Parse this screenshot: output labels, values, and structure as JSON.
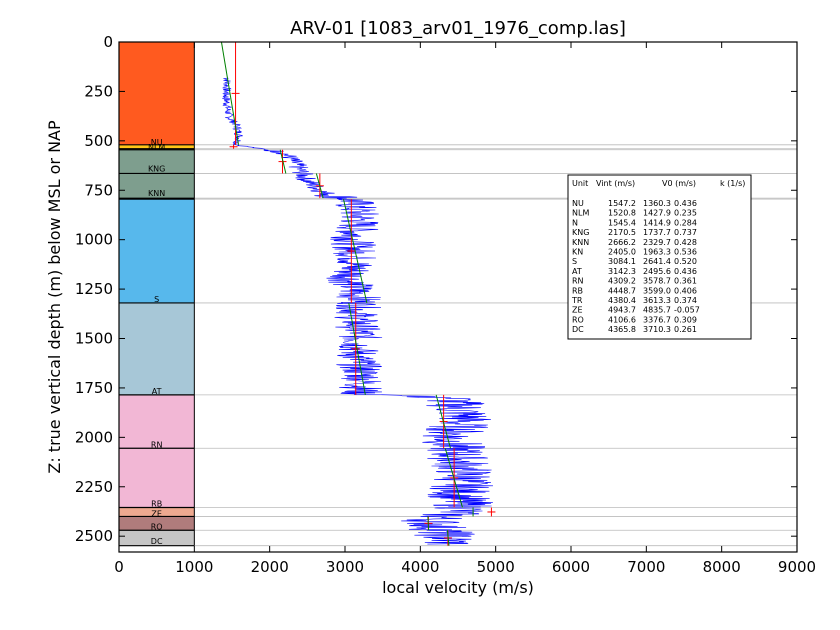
{
  "chart_data": {
    "type": "line",
    "title": "ARV-01 [1083_arv01_1976_comp.las]",
    "xlabel": "local velocity (m/s)",
    "ylabel": "Z: true vertical depth (m) below MSL or NAP",
    "xlim": [
      0,
      9000
    ],
    "ylim": [
      2580,
      0
    ],
    "x_ticks": [
      "0",
      "1000",
      "2000",
      "3000",
      "4000",
      "5000",
      "6000",
      "7000",
      "8000",
      "9000"
    ],
    "y_ticks": [
      "0",
      "250",
      "500",
      "750",
      "1000",
      "1250",
      "1500",
      "1750",
      "2000",
      "2250",
      "2500"
    ],
    "grid": "horizontal lines at unit boundaries",
    "colors": {
      "log": "#0000ff",
      "interval_velocity": "#ff0000",
      "fitted_trend": "#008000",
      "boundary_line": "#bbbbbb"
    },
    "lithology_column": {
      "x_range": [
        0,
        1000
      ],
      "units": [
        {
          "label": "NU",
          "top": 0,
          "base": 520,
          "color": "#ff5a1f"
        },
        {
          "label": "NLM",
          "top": 520,
          "base": 540,
          "color": "#ffc61a"
        },
        {
          "label": "N",
          "top": 540,
          "base": 545,
          "color": "#ffd54a"
        },
        {
          "label": "KNG",
          "top": 545,
          "base": 665,
          "color": "#7e9e8e"
        },
        {
          "label": "KNN",
          "top": 665,
          "base": 790,
          "color": "#7e9e8e"
        },
        {
          "label": "KN",
          "top": 790,
          "base": 795,
          "color": "#7e9e8e"
        },
        {
          "label": "S",
          "top": 795,
          "base": 1320,
          "color": "#57b8ec"
        },
        {
          "label": "AT",
          "top": 1320,
          "base": 1785,
          "color": "#a7c7d7"
        },
        {
          "label": "RN",
          "top": 1785,
          "base": 2055,
          "color": "#f2b7d5"
        },
        {
          "label": "RB",
          "top": 2055,
          "base": 2355,
          "color": "#f2b7d5"
        },
        {
          "label": "ZE",
          "top": 2355,
          "base": 2400,
          "color": "#eea990"
        },
        {
          "label": "RO",
          "top": 2400,
          "base": 2470,
          "color": "#b07c7c"
        },
        {
          "label": "DC",
          "top": 2470,
          "base": 2548,
          "color": "#c6c6c6"
        }
      ],
      "shown_labels": [
        {
          "label": "NU",
          "depth": 505
        },
        {
          "label": "NLM",
          "depth": 530
        },
        {
          "label": "KNG",
          "depth": 640
        },
        {
          "label": "KNN",
          "depth": 765
        },
        {
          "label": "S",
          "depth": 1300
        },
        {
          "label": "AT",
          "depth": 1765
        },
        {
          "label": "RN",
          "depth": 2035
        },
        {
          "label": "RB",
          "depth": 2335
        },
        {
          "label": "ZE",
          "depth": 2385
        },
        {
          "label": "RO",
          "depth": 2450
        },
        {
          "label": "DC",
          "depth": 2525
        }
      ]
    },
    "series": [
      {
        "kind": "interval_velocity",
        "segments": [
          {
            "unit": "NU",
            "x": 1547.2,
            "top": 0,
            "base": 520
          },
          {
            "unit": "NLM",
            "x": 1520.8,
            "top": 520,
            "base": 540
          },
          {
            "unit": "KNG",
            "x": 2170.5,
            "top": 545,
            "base": 665
          },
          {
            "unit": "KNN",
            "x": 2666.2,
            "top": 665,
            "base": 790
          },
          {
            "unit": "S",
            "x": 3084.1,
            "top": 795,
            "base": 1320
          },
          {
            "unit": "AT",
            "x": 3142.3,
            "top": 1320,
            "base": 1785
          },
          {
            "unit": "RN",
            "x": 4309.2,
            "top": 1785,
            "base": 2055
          },
          {
            "unit": "RB",
            "x": 4448.7,
            "top": 2055,
            "base": 2355
          },
          {
            "unit": "ZE",
            "x": 4943.7,
            "top": 2355,
            "base": 2400
          },
          {
            "unit": "RO",
            "x": 4106.6,
            "top": 2400,
            "base": 2470
          },
          {
            "unit": "DC",
            "x": 4365.8,
            "top": 2470,
            "base": 2548
          }
        ]
      },
      {
        "kind": "fitted_trend",
        "segments": [
          {
            "unit": "NU",
            "from": [
              1360,
              0
            ],
            "to": [
              1587,
              520
            ]
          },
          {
            "unit": "KNG",
            "from": [
              2140,
              545
            ],
            "to": [
              2215,
              665
            ]
          },
          {
            "unit": "KNN",
            "from": [
              2620,
              665
            ],
            "to": [
              2710,
              790
            ]
          },
          {
            "unit": "S",
            "from": [
              2980,
              795
            ],
            "to": [
              3290,
              1320
            ]
          },
          {
            "unit": "AT",
            "from": [
              3050,
              1320
            ],
            "to": [
              3270,
              1785
            ]
          },
          {
            "unit": "RN",
            "from": [
              4210,
              1785
            ],
            "to": [
              4400,
              2055
            ]
          },
          {
            "unit": "RB",
            "from": [
              4330,
              2055
            ],
            "to": [
              4560,
              2355
            ]
          },
          {
            "unit": "ZE",
            "from": [
              4700,
              2355
            ],
            "to": [
              4700,
              2400
            ]
          },
          {
            "unit": "RO",
            "from": [
              4100,
              2400
            ],
            "to": [
              4110,
              2470
            ]
          },
          {
            "unit": "DC",
            "from": [
              4360,
              2470
            ],
            "to": [
              4380,
              2548
            ]
          }
        ]
      },
      {
        "kind": "log",
        "approximate_trace": [
          [
            1440,
            180
          ],
          [
            1420,
            280
          ],
          [
            1460,
            380
          ],
          [
            1560,
            420
          ],
          [
            1600,
            480
          ],
          [
            1560,
            520
          ],
          [
            2200,
            560
          ],
          [
            2350,
            620
          ],
          [
            2500,
            700
          ],
          [
            2700,
            760
          ],
          [
            3100,
            800
          ],
          [
            3200,
            900
          ],
          [
            3100,
            1000
          ],
          [
            3150,
            1100
          ],
          [
            3050,
            1200
          ],
          [
            3200,
            1300
          ],
          [
            3150,
            1400
          ],
          [
            3200,
            1500
          ],
          [
            3150,
            1600
          ],
          [
            3250,
            1700
          ],
          [
            3200,
            1780
          ],
          [
            4400,
            1800
          ],
          [
            4600,
            1900
          ],
          [
            4400,
            2000
          ],
          [
            4500,
            2100
          ],
          [
            4600,
            2200
          ],
          [
            4500,
            2300
          ],
          [
            4600,
            2360
          ],
          [
            4150,
            2420
          ],
          [
            4300,
            2480
          ],
          [
            4400,
            2540
          ]
        ]
      }
    ],
    "table": {
      "header": [
        "Unit",
        "Vint (m/s)",
        "V0 (m/s)",
        "k (1/s)"
      ],
      "rows": [
        [
          "NU",
          "1547.2",
          "1360.3",
          "0.436"
        ],
        [
          "NLM",
          "1520.8",
          "1427.9",
          "0.235"
        ],
        [
          "N",
          "1545.4",
          "1414.9",
          "0.284"
        ],
        [
          "KNG",
          "2170.5",
          "1737.7",
          "0.737"
        ],
        [
          "KNN",
          "2666.2",
          "2329.7",
          "0.428"
        ],
        [
          "KN",
          "2405.0",
          "1963.3",
          "0.536"
        ],
        [
          "S",
          "3084.1",
          "2641.4",
          "0.520"
        ],
        [
          "AT",
          "3142.3",
          "2495.6",
          "0.436"
        ],
        [
          "RN",
          "4309.2",
          "3578.7",
          "0.361"
        ],
        [
          "RB",
          "4448.7",
          "3599.0",
          "0.406"
        ],
        [
          "TR",
          "4380.4",
          "3613.3",
          "0.374"
        ],
        [
          "ZE",
          "4943.7",
          "4835.7",
          "-0.057"
        ],
        [
          "RO",
          "4106.6",
          "3376.7",
          "0.309"
        ],
        [
          "DC",
          "4365.8",
          "3710.3",
          "0.261"
        ]
      ]
    }
  }
}
